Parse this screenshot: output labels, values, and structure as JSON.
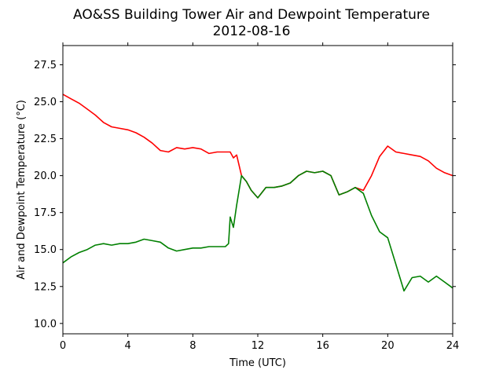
{
  "chart_data": {
    "type": "line",
    "title": "AO&SS Building Tower Air and Dewpoint Temperature",
    "subtitle": "2012-08-16",
    "xlabel": "Time (UTC)",
    "ylabel": "Air and Dewpoint Temperature (°C)",
    "xlim": [
      0,
      24
    ],
    "ylim": [
      9.3,
      28.8
    ],
    "x_ticks": [
      0,
      4,
      8,
      12,
      16,
      20,
      24
    ],
    "x_tick_labels": [
      "0",
      "4",
      "8",
      "12",
      "16",
      "20",
      "24"
    ],
    "y_ticks": [
      10.0,
      12.5,
      15.0,
      17.5,
      20.0,
      22.5,
      25.0,
      27.5
    ],
    "y_tick_labels": [
      "10.0",
      "12.5",
      "15.0",
      "17.5",
      "20.0",
      "22.5",
      "25.0",
      "27.5"
    ],
    "grid": false,
    "legend": "none",
    "series": [
      {
        "color": "#ff0000",
        "points": [
          [
            0.0,
            25.5
          ],
          [
            0.5,
            25.2
          ],
          [
            1.0,
            24.9
          ],
          [
            1.5,
            24.5
          ],
          [
            2.0,
            24.1
          ],
          [
            2.5,
            23.6
          ],
          [
            3.0,
            23.3
          ],
          [
            3.5,
            23.2
          ],
          [
            4.0,
            23.1
          ],
          [
            4.5,
            22.9
          ],
          [
            5.0,
            22.6
          ],
          [
            5.5,
            22.2
          ],
          [
            6.0,
            21.7
          ],
          [
            6.5,
            21.6
          ],
          [
            7.0,
            21.9
          ],
          [
            7.5,
            21.8
          ],
          [
            8.0,
            21.9
          ],
          [
            8.5,
            21.8
          ],
          [
            9.0,
            21.5
          ],
          [
            9.5,
            21.6
          ],
          [
            10.0,
            21.6
          ],
          [
            10.3,
            21.6
          ],
          [
            10.5,
            21.2
          ],
          [
            10.7,
            21.4
          ],
          [
            11.0,
            20.0
          ],
          [
            11.3,
            19.6
          ],
          [
            11.6,
            19.0
          ],
          [
            12.0,
            18.5
          ],
          [
            12.5,
            19.2
          ],
          [
            13.0,
            19.2
          ],
          [
            13.5,
            19.3
          ],
          [
            14.0,
            19.5
          ],
          [
            14.5,
            20.0
          ],
          [
            15.0,
            20.3
          ],
          [
            15.5,
            20.2
          ],
          [
            16.0,
            20.3
          ],
          [
            16.5,
            20.0
          ],
          [
            17.0,
            18.7
          ],
          [
            17.5,
            18.9
          ],
          [
            18.0,
            19.2
          ],
          [
            18.5,
            19.0
          ],
          [
            19.0,
            20.0
          ],
          [
            19.5,
            21.3
          ],
          [
            20.0,
            22.0
          ],
          [
            20.5,
            21.6
          ],
          [
            21.0,
            21.5
          ],
          [
            21.5,
            21.4
          ],
          [
            22.0,
            21.3
          ],
          [
            22.5,
            21.0
          ],
          [
            23.0,
            20.5
          ],
          [
            23.5,
            20.2
          ],
          [
            24.0,
            20.0
          ]
        ]
      },
      {
        "color": "#008000",
        "points": [
          [
            0.0,
            14.1
          ],
          [
            0.5,
            14.5
          ],
          [
            1.0,
            14.8
          ],
          [
            1.5,
            15.0
          ],
          [
            2.0,
            15.3
          ],
          [
            2.5,
            15.4
          ],
          [
            3.0,
            15.3
          ],
          [
            3.5,
            15.4
          ],
          [
            4.0,
            15.4
          ],
          [
            4.5,
            15.5
          ],
          [
            5.0,
            15.7
          ],
          [
            5.5,
            15.6
          ],
          [
            6.0,
            15.5
          ],
          [
            6.5,
            15.1
          ],
          [
            7.0,
            14.9
          ],
          [
            7.5,
            15.0
          ],
          [
            8.0,
            15.1
          ],
          [
            8.5,
            15.1
          ],
          [
            9.0,
            15.2
          ],
          [
            9.5,
            15.2
          ],
          [
            10.0,
            15.2
          ],
          [
            10.2,
            15.4
          ],
          [
            10.3,
            17.2
          ],
          [
            10.5,
            16.5
          ],
          [
            10.7,
            18.0
          ],
          [
            11.0,
            20.0
          ],
          [
            11.3,
            19.6
          ],
          [
            11.6,
            19.0
          ],
          [
            12.0,
            18.5
          ],
          [
            12.5,
            19.2
          ],
          [
            13.0,
            19.2
          ],
          [
            13.5,
            19.3
          ],
          [
            14.0,
            19.5
          ],
          [
            14.5,
            20.0
          ],
          [
            15.0,
            20.3
          ],
          [
            15.5,
            20.2
          ],
          [
            16.0,
            20.3
          ],
          [
            16.5,
            20.0
          ],
          [
            17.0,
            18.7
          ],
          [
            17.5,
            18.9
          ],
          [
            18.0,
            19.2
          ],
          [
            18.5,
            18.8
          ],
          [
            19.0,
            17.3
          ],
          [
            19.5,
            16.2
          ],
          [
            20.0,
            15.8
          ],
          [
            20.5,
            14.0
          ],
          [
            21.0,
            12.2
          ],
          [
            21.5,
            13.1
          ],
          [
            22.0,
            13.2
          ],
          [
            22.5,
            12.8
          ],
          [
            23.0,
            13.2
          ],
          [
            23.5,
            12.8
          ],
          [
            24.0,
            12.4
          ]
        ]
      }
    ]
  }
}
